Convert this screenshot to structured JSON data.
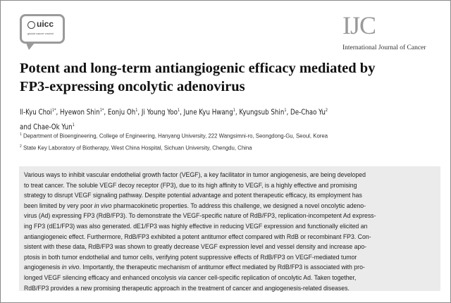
{
  "header": {
    "society_logo_text": "uicc",
    "society_logo_tagline": "global cancer control",
    "journal_abbrev": "IJC",
    "journal_name": "International Journal of Cancer"
  },
  "article": {
    "title_lines": [
      "Potent and long-term antiangiogenic efficacy mediated by",
      "FP3-expressing oncolytic adenovirus"
    ],
    "authors": [
      {
        "name": "Il-Kyu Choi",
        "sup": "1*",
        "sep": ", "
      },
      {
        "name": "Hyewon Shin",
        "sup": "1*",
        "sep": ", "
      },
      {
        "name": "Eonju Oh",
        "sup": "1",
        "sep": ", "
      },
      {
        "name": "Ji Young Yoo",
        "sup": "1",
        "sep": ", "
      },
      {
        "name": "June Kyu Hwang",
        "sup": "1",
        "sep": ", "
      },
      {
        "name": "Kyungsub Shin",
        "sup": "1",
        "sep": ", "
      },
      {
        "name": "De-Chao Yu",
        "sup": "2",
        "sep": ""
      },
      {
        "name": "and Chae-Ok Yun",
        "sup": "1",
        "sep": ""
      }
    ],
    "affiliations": [
      {
        "sup": "1",
        "text": " Department of Bioengineering, College of Engineering, Hanyang University, 222 Wangsimni-ro, Seongdong-Gu, Seoul, Korea"
      },
      {
        "sup": "2",
        "text": " State Key Laboratory of Biotherapy, West China Hospital, Sichuan University, Chengdu, China"
      }
    ],
    "abstract_lines": [
      [
        {
          "t": "Various ways to inhibit vascular endothelial growth factor (VEGF), a key facilitator in tumor angiogenesis, are being developed"
        }
      ],
      [
        {
          "t": "to treat cancer. The soluble VEGF decoy receptor (FP3), due to its high affinity to VEGF, is a highly effective and promising"
        }
      ],
      [
        {
          "t": "strategy to disrupt VEGF signaling pathway. Despite potential advantage and potent therapeutic efficacy, its employment has"
        }
      ],
      [
        {
          "t": "been limited by very poor "
        },
        {
          "t": "in vivo",
          "i": true
        },
        {
          "t": " pharmacokinetic properties. To address this challenge, we designed a novel oncolytic adeno-"
        }
      ],
      [
        {
          "t": "virus (Ad) expressing FP3 (RdB/FP3). To demonstrate the VEGF-specific nature of RdB/FP3, replication-incompetent Ad express-"
        }
      ],
      [
        {
          "t": "ing FP3 (dE1/FP3) was also generated. dE1/FP3 was highly effective in reducing VEGF expression and functionally elicited an"
        }
      ],
      [
        {
          "t": "antiangiogeneic effect. Furthermore, RdB/FP3 exhibited a potent antitumor effect compared with RdB or recombinant FP3. Con-"
        }
      ],
      [
        {
          "t": "sistent with these data, RdB/FP3 was shown to greatly decrease VEGF expression level and vessel density and increase apo-"
        }
      ],
      [
        {
          "t": "ptosis in both tumor endothelial and tumor cells, verifying potent suppressive effects of RdB/FP3 on VEGF-mediated tumor"
        }
      ],
      [
        {
          "t": "angiogenesis "
        },
        {
          "t": "in vivo",
          "i": true
        },
        {
          "t": ". Importantly, the therapeutic mechanism of antitumor effect mediated by RdB/FP3 is associated with pro-"
        }
      ],
      [
        {
          "t": "longed VEGF silencing efficacy and enhanced oncolysis "
        },
        {
          "t": "via",
          "i": true
        },
        {
          "t": " cancer cell-specific replication of oncolytic Ad. Taken together,"
        }
      ],
      [
        {
          "t": "RdB/FP3 provides a new promising therapeutic approach in the treatment of cancer and angiogenesis-related diseases."
        }
      ]
    ]
  }
}
